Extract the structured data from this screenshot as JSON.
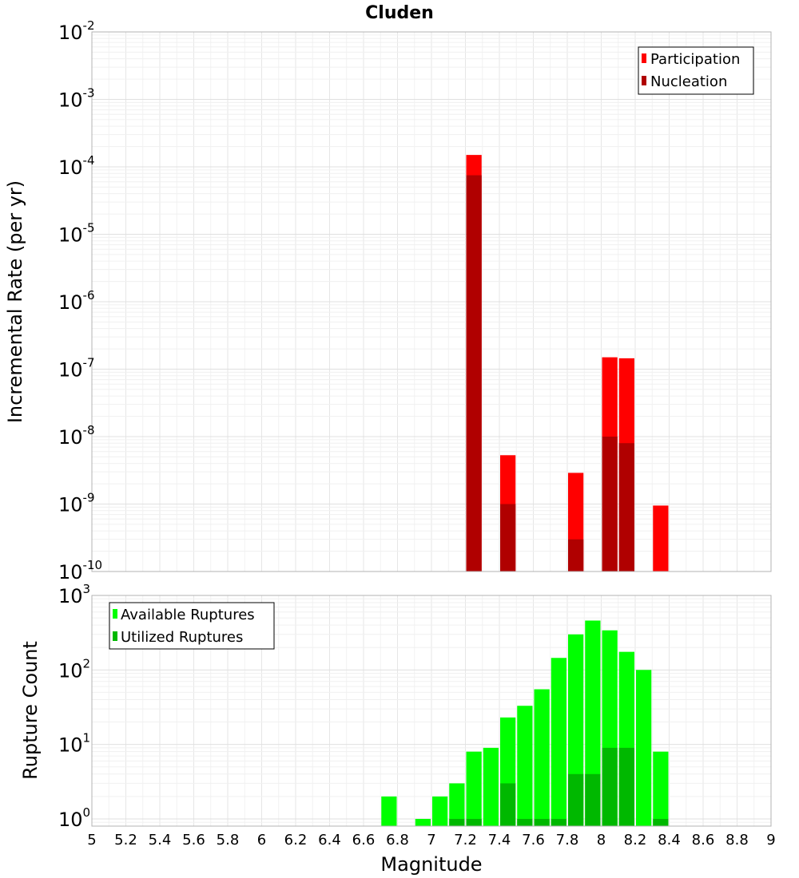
{
  "chart_data": [
    {
      "type": "bar",
      "title": "Cluden",
      "xlabel": "Magnitude",
      "ylabel": "Incremental Rate (per yr)",
      "yscale": "log",
      "xlim": [
        5,
        9
      ],
      "ylim": [
        1e-10,
        0.01
      ],
      "x": [
        7.25,
        7.45,
        7.85,
        8.05,
        8.15,
        8.35
      ],
      "series": [
        {
          "name": "Participation",
          "color": "#ff0000",
          "values": [
            0.00015,
            5.3e-09,
            2.9e-09,
            1.5e-07,
            1.45e-07,
            9.5e-10
          ]
        },
        {
          "name": "Nucleation",
          "color": "#b00000",
          "values": [
            7.5e-05,
            1e-09,
            3e-10,
            1e-08,
            8e-09,
            null
          ]
        }
      ],
      "legend": "top-right",
      "grid": true
    },
    {
      "type": "bar",
      "xlabel": "Magnitude",
      "ylabel": "Rupture Count",
      "yscale": "log",
      "xlim": [
        5,
        9
      ],
      "ylim": [
        0.8,
        1000
      ],
      "x": [
        6.75,
        6.95,
        7.05,
        7.15,
        7.25,
        7.35,
        7.45,
        7.55,
        7.65,
        7.75,
        7.85,
        7.95,
        8.05,
        8.15,
        8.25,
        8.35
      ],
      "series": [
        {
          "name": "Available Ruptures",
          "color": "#00ff00",
          "values": [
            2,
            1,
            2,
            3,
            8,
            9,
            23,
            33,
            55,
            145,
            300,
            460,
            340,
            175,
            100,
            8
          ]
        },
        {
          "name": "Utilized Ruptures",
          "color": "#00b800",
          "values": [
            null,
            null,
            null,
            1,
            1,
            null,
            3,
            1,
            1,
            1,
            4,
            4,
            9,
            9,
            null,
            1
          ]
        }
      ],
      "legend": "top-left",
      "grid": true
    }
  ],
  "top_yticks": [
    {
      "base": "10",
      "exp": "-2",
      "value": 0.01
    },
    {
      "base": "10",
      "exp": "-3",
      "value": 0.001
    },
    {
      "base": "10",
      "exp": "-4",
      "value": 0.0001
    },
    {
      "base": "10",
      "exp": "-5",
      "value": 1e-05
    },
    {
      "base": "10",
      "exp": "-6",
      "value": 1e-06
    },
    {
      "base": "10",
      "exp": "-7",
      "value": 1e-07
    },
    {
      "base": "10",
      "exp": "-8",
      "value": 1e-08
    },
    {
      "base": "10",
      "exp": "-9",
      "value": 1e-09
    },
    {
      "base": "10",
      "exp": "-10",
      "value": 1e-10
    }
  ],
  "bottom_yticks": [
    {
      "base": "10",
      "exp": "3",
      "value": 1000
    },
    {
      "base": "10",
      "exp": "2",
      "value": 100
    },
    {
      "base": "10",
      "exp": "1",
      "value": 10
    },
    {
      "base": "10",
      "exp": "0",
      "value": 1
    }
  ],
  "xticks": [
    "5",
    "5.2",
    "5.4",
    "5.6",
    "5.8",
    "6",
    "6.2",
    "6.4",
    "6.6",
    "6.8",
    "7",
    "7.2",
    "7.4",
    "7.6",
    "7.8",
    "8",
    "8.2",
    "8.4",
    "8.6",
    "8.8",
    "9"
  ]
}
